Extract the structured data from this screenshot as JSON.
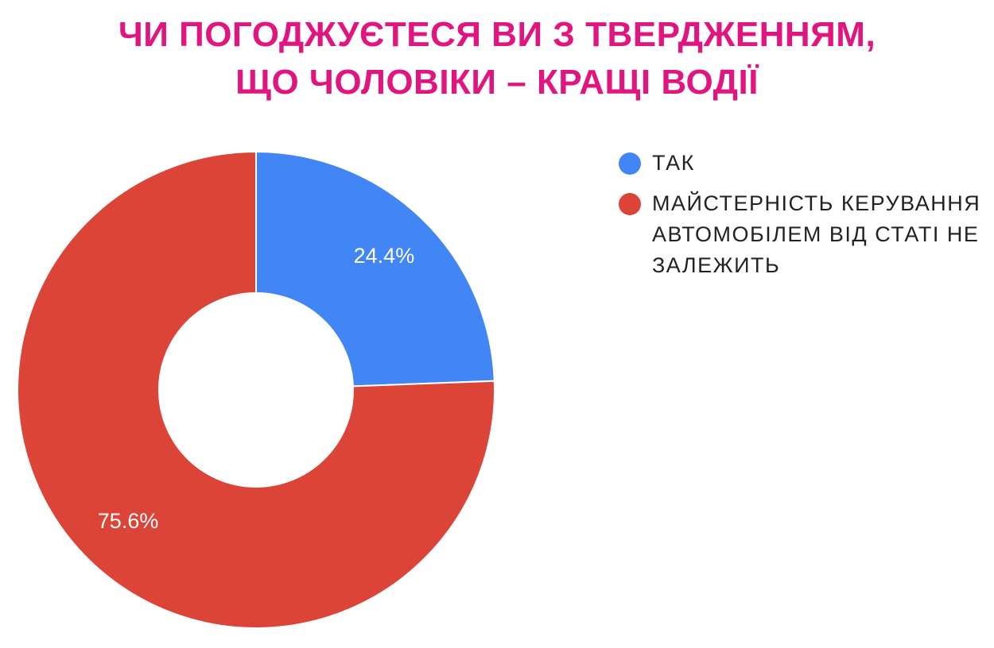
{
  "chart_data": {
    "type": "pie",
    "title_lines": [
      "ЧИ ПОГОДЖУЄТЕСЯ ВИ З ТВЕРДЖЕННЯМ,",
      "ЩО ЧОЛОВІКИ – КРАЩІ ВОДІЇ"
    ],
    "donut": true,
    "legend_position": "right",
    "slices": [
      {
        "label": "ТАК",
        "value": 24.4,
        "display": "24.4%",
        "color": "#4285f4"
      },
      {
        "label": "МАЙСТЕРНІСТЬ КЕРУВАННЯ АВТОМОБІЛЕМ ВІД СТАТІ НЕ ЗАЛЕЖИТЬ",
        "value": 75.6,
        "display": "75.6%",
        "color": "#db4437"
      }
    ],
    "title_color": "#e0157f"
  }
}
